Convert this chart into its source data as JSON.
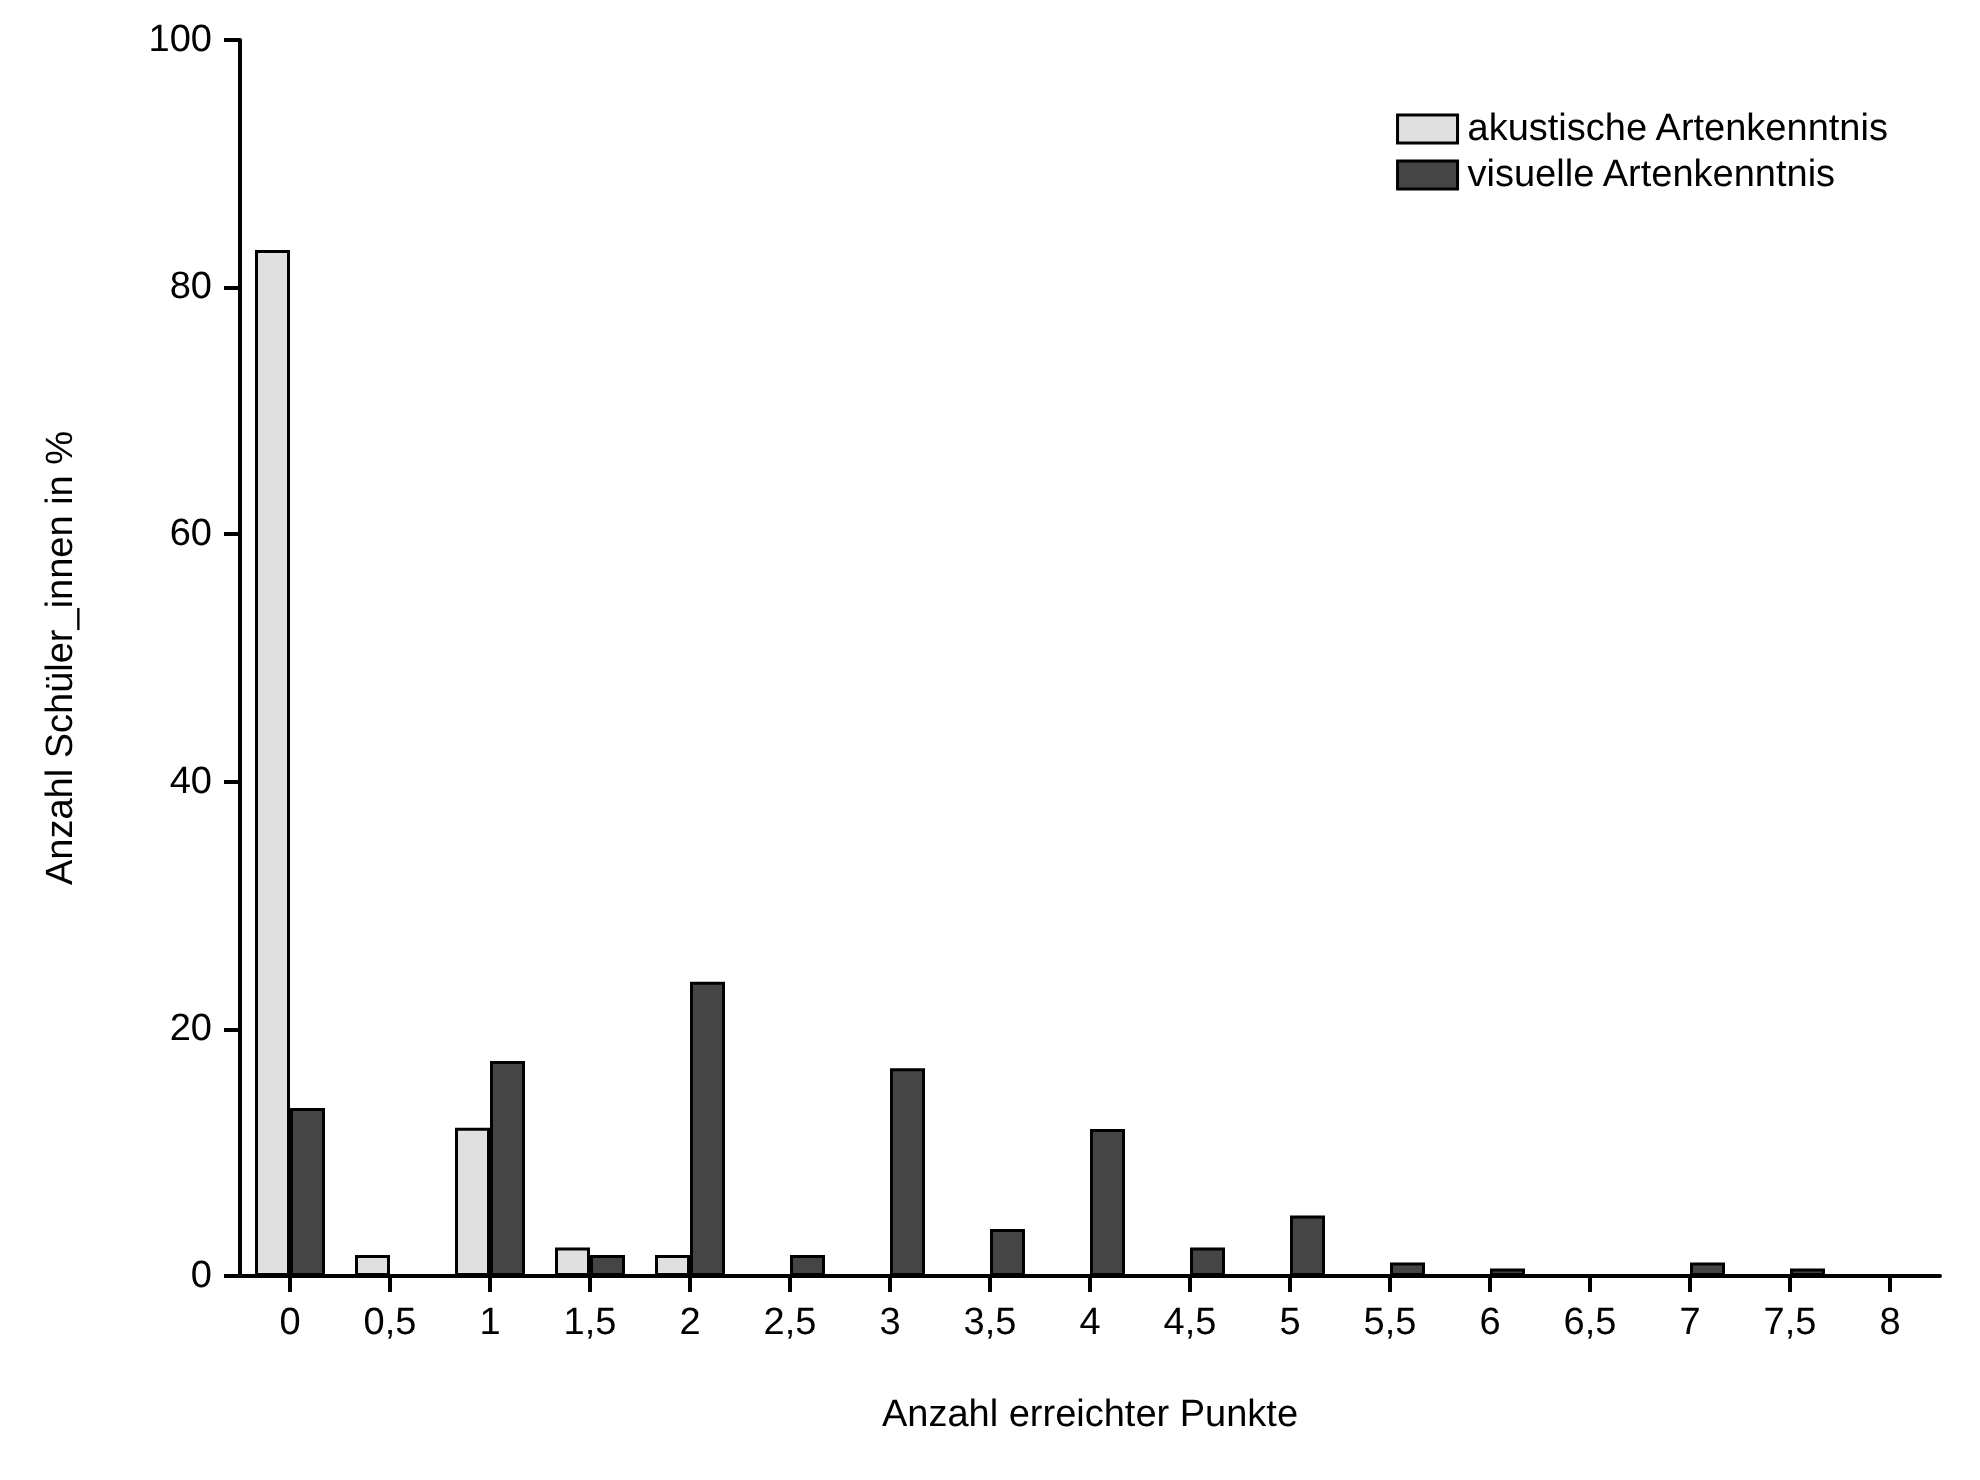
{
  "chart_data": {
    "type": "bar",
    "xlabel": "Anzahl erreichter Punkte",
    "ylabel": "Anzahl Schüler_innen in %",
    "categories": [
      "0",
      "0,5",
      "1",
      "1,5",
      "2",
      "2,5",
      "3",
      "3,5",
      "4",
      "4,5",
      "5",
      "5,5",
      "6",
      "6,5",
      "7",
      "7,5",
      "8"
    ],
    "series": [
      {
        "name": "akustische Artenkenntnis",
        "color": "#e0e0e0",
        "values": [
          83,
          1.7,
          12,
          2.3,
          1.7,
          0,
          0,
          0,
          0,
          0,
          0,
          0,
          0,
          0,
          0,
          0,
          0
        ]
      },
      {
        "name": "visuelle Artenkenntnis",
        "color": "#454545",
        "values": [
          13.6,
          0,
          17.4,
          1.7,
          23.8,
          1.7,
          16.8,
          3.8,
          11.9,
          2.3,
          4.9,
          1.1,
          0.6,
          0,
          1.1,
          0.6,
          0
        ]
      }
    ],
    "ylim": [
      0,
      100
    ],
    "yticks": [
      0,
      20,
      40,
      60,
      80,
      100
    ],
    "grid": false,
    "legend": "top right"
  }
}
